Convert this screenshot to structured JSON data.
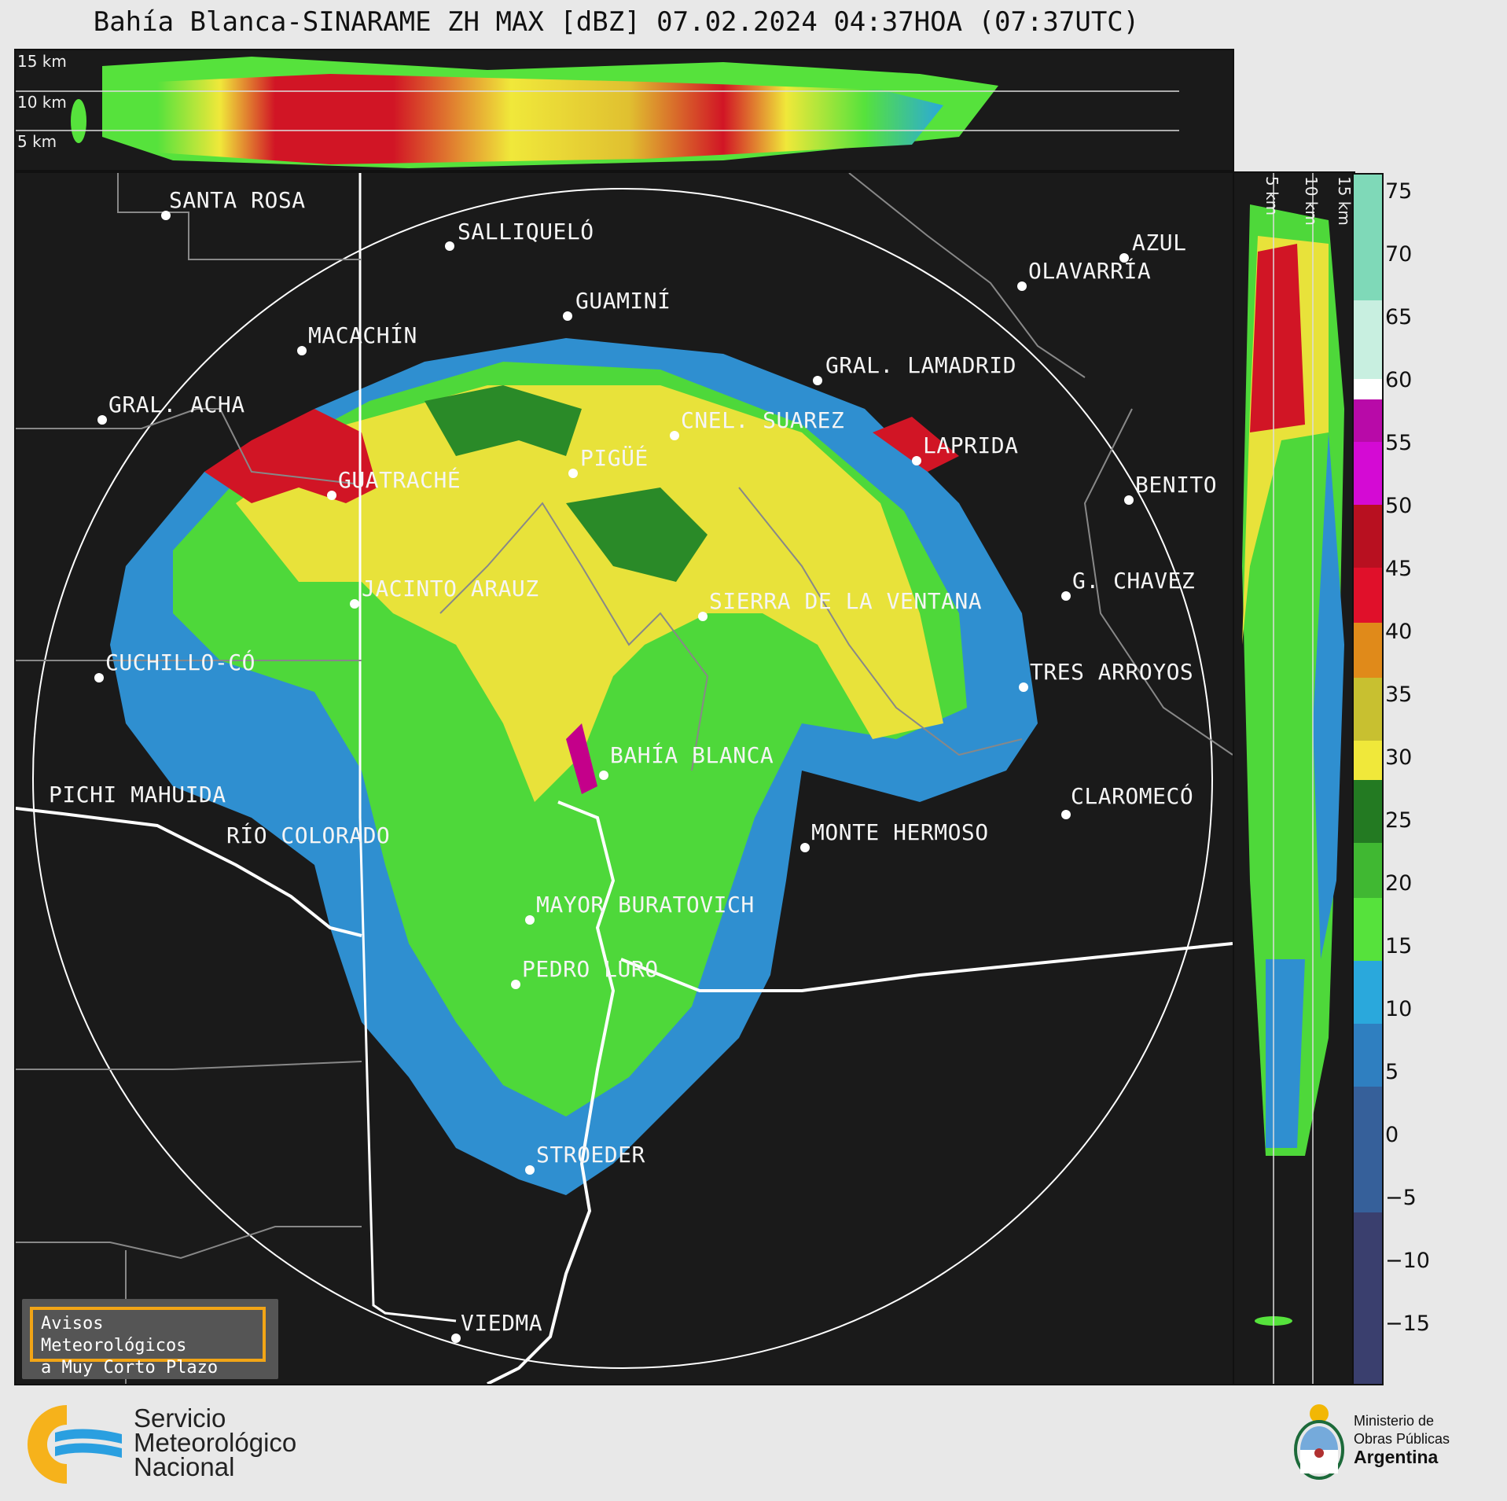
{
  "title": "Bahía Blanca-SINARAME ZH MAX [dBZ] 07.02.2024 04:37HOA (07:37UTC)",
  "top_panel_levels": [
    "15 km",
    "10 km",
    "5 km"
  ],
  "side_panel_levels": [
    "5 km",
    "10 km",
    "15 km"
  ],
  "colorbar": {
    "unit": "dBZ",
    "ticks": [
      "75",
      "70",
      "65",
      "60",
      "55",
      "50",
      "45",
      "40",
      "35",
      "30",
      "25",
      "20",
      "15",
      "10",
      "5",
      "0",
      "−5",
      "−10",
      "−15"
    ],
    "colors": {
      "blue_low": "#3a3f6e",
      "blue_mid": "#2f7fc0",
      "cyan": "#2aa8dc",
      "green_light": "#56e23c",
      "green_dark": "#237a22",
      "yellow": "#f0e83a",
      "orange": "#e08a1a",
      "red": "#d11525",
      "magenta": "#d40ad4",
      "white": "#ffffff",
      "mint": "#7fd9b8"
    }
  },
  "cities": [
    {
      "name": "SANTA ROSA"
    },
    {
      "name": "SALLIQUELÓ"
    },
    {
      "name": "AZUL"
    },
    {
      "name": "OLAVARRÍA"
    },
    {
      "name": "GUAMINÍ"
    },
    {
      "name": "MACACHÍN"
    },
    {
      "name": "GRAL. LAMADRID"
    },
    {
      "name": "GRAL. ACHA"
    },
    {
      "name": "CNEL. SUAREZ"
    },
    {
      "name": "LAPRIDA"
    },
    {
      "name": "PIGÜÉ"
    },
    {
      "name": "GUATRACHÉ"
    },
    {
      "name": "BENITO"
    },
    {
      "name": "JACINTO ARAUZ"
    },
    {
      "name": "SIERRA DE LA VENTANA"
    },
    {
      "name": "G. CHAVEZ"
    },
    {
      "name": "CUCHILLO-CÓ"
    },
    {
      "name": "TRES ARROYOS"
    },
    {
      "name": "BAHÍA BLANCA"
    },
    {
      "name": "PICHI MAHUIDA"
    },
    {
      "name": "CLAROMECÓ"
    },
    {
      "name": "RÍO COLORADO"
    },
    {
      "name": "MONTE HERMOSO"
    },
    {
      "name": "MAYOR BURATOVICH"
    },
    {
      "name": "PEDRO LURO"
    },
    {
      "name": "STROEDER"
    },
    {
      "name": "VIEDMA"
    }
  ],
  "avisos": {
    "line1": "Avisos Meteorológicos",
    "line2": "a Muy Corto Plazo"
  },
  "footer_left": {
    "line1": "Servicio",
    "line2": "Meteorológico",
    "line3": "Nacional"
  },
  "footer_right": {
    "line1": "Ministerio de",
    "line2": "Obras Públicas",
    "line3": "Argentina"
  }
}
